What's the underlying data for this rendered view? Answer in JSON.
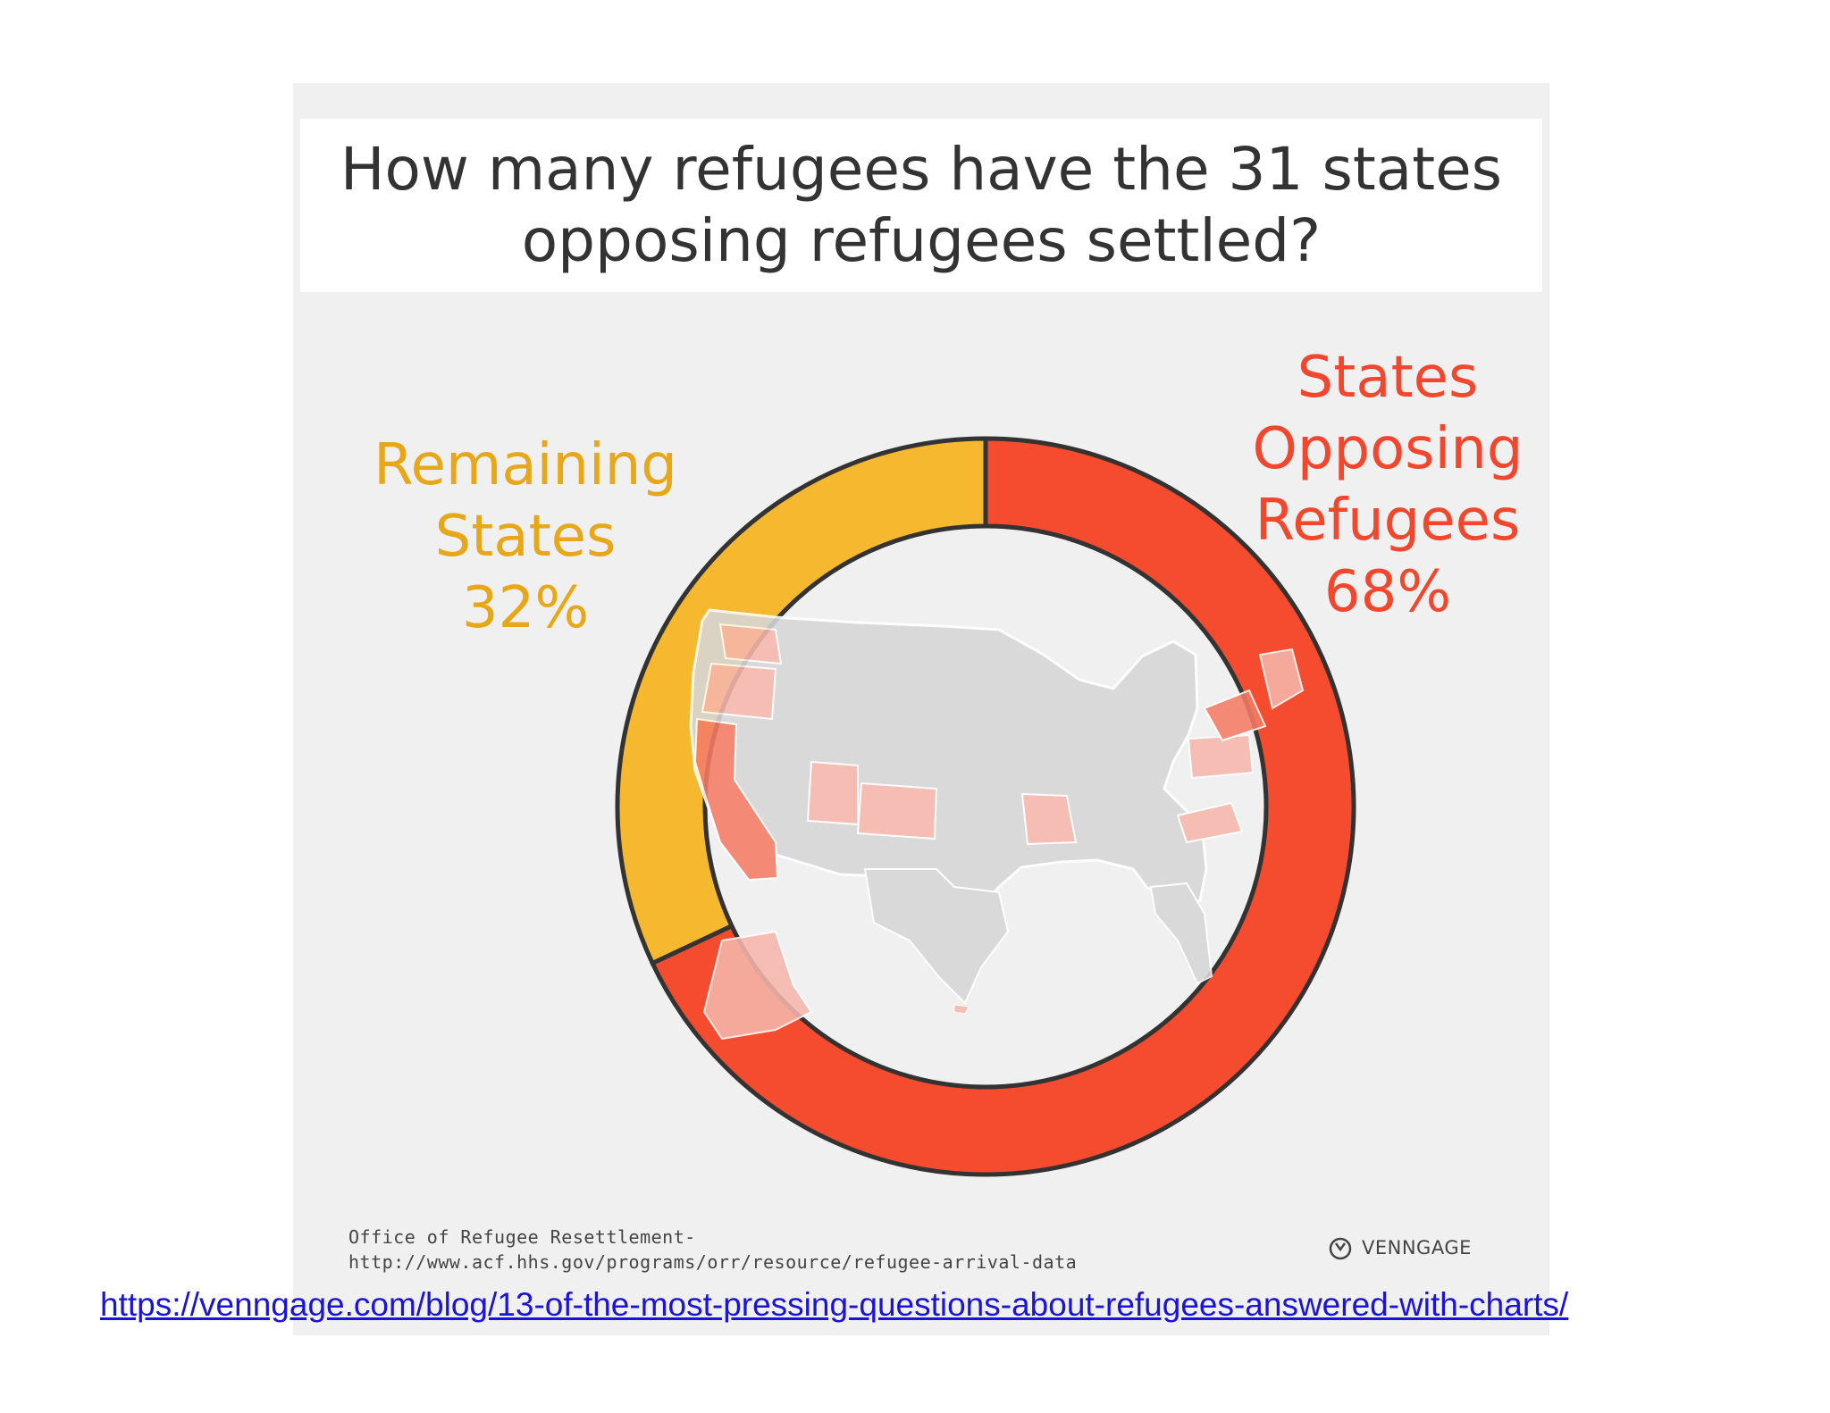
{
  "chart_data": {
    "type": "pie",
    "title": "How many refugees have the 31 states opposing refugees settled?",
    "slices": [
      {
        "label_lines": [
          "States",
          "Opposing",
          "Refugees"
        ],
        "value": 68,
        "value_label": "68%",
        "color": "#f54b2e"
      },
      {
        "label_lines": [
          "Remaining",
          "States"
        ],
        "value": 32,
        "value_label": "32%",
        "color": "#f5b82e"
      }
    ],
    "legend": "none"
  },
  "source": {
    "line1": "Office of Refugee Resettlement-",
    "line2": "http://www.acf.hhs.gov/programs/orr/resource/refugee-arrival-data"
  },
  "brand": {
    "name": "VENNGAGE",
    "icon": "venngage-logo-icon"
  },
  "reference_url": "https://venngage.com/blog/13-of-the-most-pressing-questions-about-refugees-answered-with-charts/",
  "colors": {
    "opposing": "#f54b2e",
    "remaining": "#f5b82e",
    "map_gray": "#d7d6d8",
    "map_opposing_light": "#f6b6ab",
    "map_opposing_dark": "#f57c66"
  }
}
